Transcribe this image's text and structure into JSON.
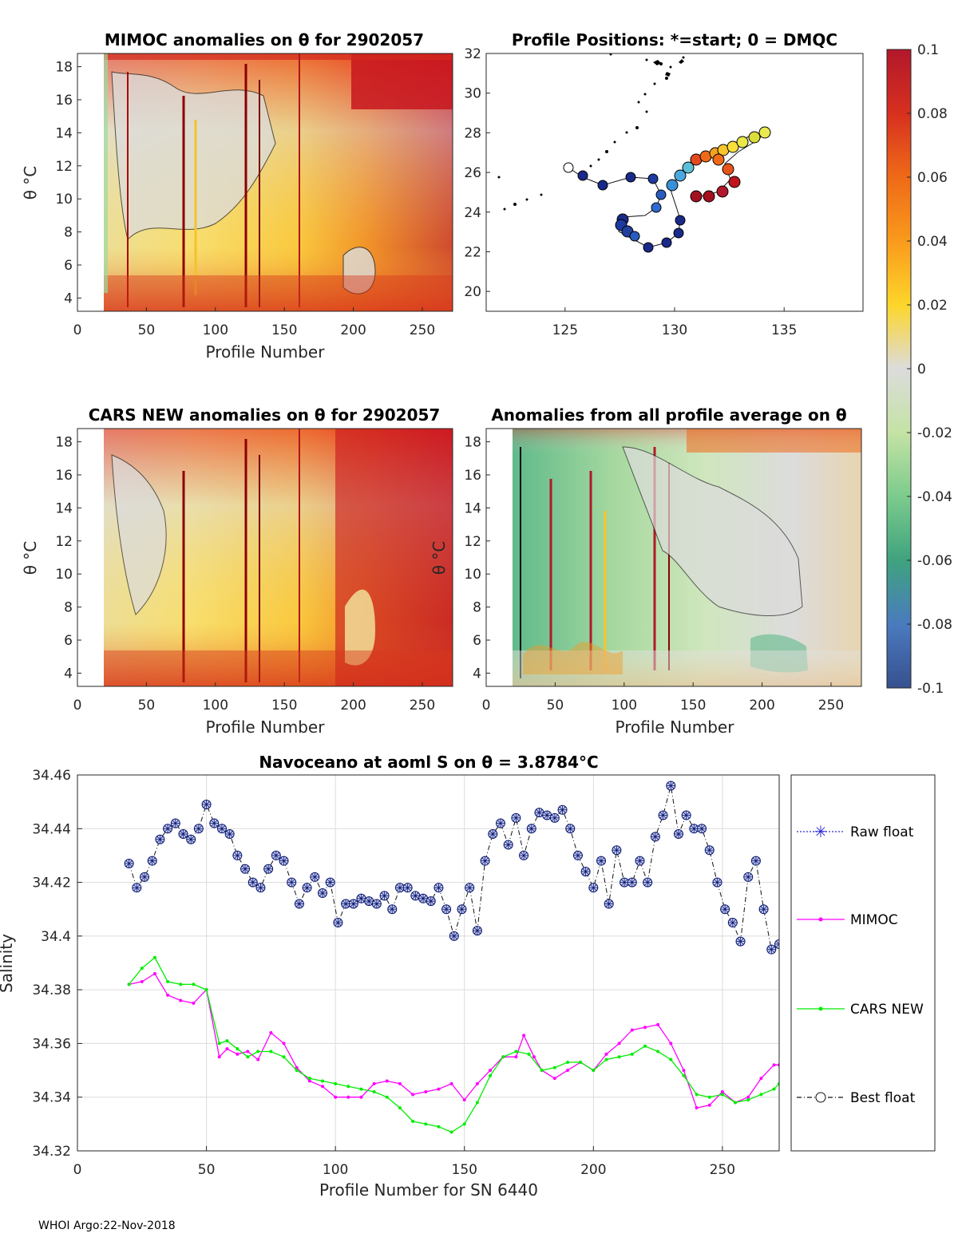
{
  "footer": "WHOI Argo:22-Nov-2018",
  "panels": {
    "mimoc": {
      "title": "MIMOC anomalies on θ  for 2902057",
      "xlabel": "Profile Number",
      "ylabel": "θ °C",
      "xticks": [
        "0",
        "50",
        "100",
        "150",
        "200",
        "250"
      ],
      "yticks": [
        "4",
        "6",
        "8",
        "10",
        "12",
        "14",
        "16",
        "18"
      ]
    },
    "positions": {
      "title": "Profile Positions: *=start; 0 = DMQC",
      "xticks": [
        "125",
        "130",
        "135"
      ],
      "yticks": [
        "20",
        "22",
        "24",
        "26",
        "28",
        "30",
        "32"
      ]
    },
    "cars": {
      "title": "CARS NEW anomalies on θ for 2902057",
      "xlabel": "Profile Number",
      "ylabel": "θ °C",
      "xticks": [
        "0",
        "50",
        "100",
        "150",
        "200",
        "250"
      ],
      "yticks": [
        "4",
        "6",
        "8",
        "10",
        "12",
        "14",
        "16",
        "18"
      ]
    },
    "avg": {
      "title": "Anomalies from all profile average on θ",
      "xlabel": "Profile Number",
      "ylabel": "θ °C",
      "xticks": [
        "0",
        "50",
        "100",
        "150",
        "200",
        "250"
      ],
      "yticks": [
        "4",
        "6",
        "8",
        "10",
        "12",
        "14",
        "16",
        "18"
      ]
    }
  },
  "colorbar": {
    "ticks": [
      "0.1",
      "0.08",
      "0.06",
      "0.04",
      "0.02",
      "0",
      "-0.02",
      "-0.04",
      "-0.06",
      "-0.08",
      "-0.1"
    ],
    "colors": [
      "#b2182b",
      "#d7301f",
      "#ef6a18",
      "#f99a1c",
      "#fdd62a",
      "#dcdcdc",
      "#c4e3a4",
      "#7ccb8d",
      "#3fa37e",
      "#4a7bbf",
      "#37508e"
    ]
  },
  "chart_data": {
    "type": "line",
    "title": "Navoceano at aoml S on θ = 3.8784°C",
    "xlabel": "Profile Number for SN 6440",
    "ylabel": "Salinity",
    "xlim": [
      0,
      272
    ],
    "ylim": [
      34.32,
      34.46
    ],
    "xticks": [
      "0",
      "50",
      "100",
      "150",
      "200",
      "250"
    ],
    "yticks": [
      "34.32",
      "34.34",
      "34.36",
      "34.38",
      "34.4",
      "34.42",
      "34.44",
      "34.46"
    ],
    "grid": true,
    "legend_position": "right",
    "legend": [
      "Raw float",
      "MIMOC",
      "CARS NEW",
      "Best float"
    ],
    "series": [
      {
        "name": "Best float",
        "color": "#0a1670",
        "x": [
          20,
          23,
          26,
          29,
          32,
          35,
          38,
          41,
          44,
          47,
          50,
          53,
          56,
          59,
          62,
          65,
          68,
          71,
          74,
          77,
          80,
          83,
          86,
          89,
          92,
          95,
          98,
          101,
          104,
          107,
          110,
          113,
          116,
          119,
          122,
          125,
          128,
          131,
          134,
          137,
          140,
          143,
          146,
          149,
          152,
          155,
          158,
          161,
          164,
          167,
          170,
          173,
          176,
          179,
          182,
          185,
          188,
          191,
          194,
          197,
          200,
          203,
          206,
          209,
          212,
          215,
          218,
          221,
          224,
          227,
          230,
          233,
          236,
          239,
          242,
          245,
          248,
          251,
          254,
          257,
          260,
          263,
          266,
          269,
          272
        ],
        "values": [
          34.427,
          34.418,
          34.422,
          34.428,
          34.436,
          34.44,
          34.442,
          34.438,
          34.436,
          34.44,
          34.449,
          34.442,
          34.44,
          34.438,
          34.43,
          34.425,
          34.42,
          34.418,
          34.425,
          34.43,
          34.428,
          34.42,
          34.412,
          34.418,
          34.422,
          34.416,
          34.42,
          34.405,
          34.412,
          34.412,
          34.414,
          34.413,
          34.412,
          34.415,
          34.41,
          34.418,
          34.418,
          34.415,
          34.414,
          34.413,
          34.418,
          34.41,
          34.4,
          34.41,
          34.418,
          34.402,
          34.428,
          34.438,
          34.442,
          34.434,
          34.444,
          34.43,
          34.44,
          34.446,
          34.445,
          34.444,
          34.447,
          34.44,
          34.43,
          34.424,
          34.418,
          34.428,
          34.412,
          34.432,
          34.42,
          34.42,
          34.428,
          34.42,
          34.437,
          34.445,
          34.456,
          34.438,
          34.445,
          34.44,
          34.44,
          34.432,
          34.42,
          34.41,
          34.405,
          34.398,
          34.422,
          34.428,
          34.41,
          34.395,
          34.397
        ]
      },
      {
        "name": "MIMOC",
        "color": "#ff00ff",
        "x": [
          20,
          25,
          30,
          35,
          40,
          45,
          50,
          55,
          58,
          62,
          66,
          70,
          75,
          80,
          85,
          90,
          95,
          100,
          105,
          110,
          115,
          120,
          125,
          130,
          135,
          140,
          145,
          150,
          155,
          160,
          165,
          170,
          173,
          177,
          180,
          185,
          190,
          195,
          200,
          205,
          210,
          215,
          220,
          225,
          230,
          235,
          240,
          245,
          250,
          255,
          260,
          265,
          270,
          272
        ],
        "values": [
          34.382,
          34.383,
          34.386,
          34.378,
          34.376,
          34.375,
          34.38,
          34.355,
          34.358,
          34.356,
          34.357,
          34.354,
          34.364,
          34.36,
          34.351,
          34.346,
          34.344,
          34.34,
          34.34,
          34.34,
          34.345,
          34.346,
          34.345,
          34.341,
          34.342,
          34.343,
          34.345,
          34.339,
          34.345,
          34.35,
          34.355,
          34.355,
          34.363,
          34.355,
          34.35,
          34.347,
          34.35,
          34.353,
          34.35,
          34.356,
          34.36,
          34.365,
          34.366,
          34.367,
          34.36,
          34.35,
          34.336,
          34.337,
          34.342,
          34.338,
          34.34,
          34.347,
          34.352,
          34.352
        ]
      },
      {
        "name": "CARS NEW",
        "color": "#00ee00",
        "x": [
          20,
          25,
          30,
          35,
          40,
          45,
          50,
          55,
          58,
          62,
          66,
          70,
          75,
          80,
          85,
          90,
          95,
          100,
          105,
          110,
          115,
          120,
          125,
          130,
          135,
          140,
          145,
          150,
          155,
          160,
          165,
          170,
          175,
          180,
          185,
          190,
          195,
          200,
          205,
          210,
          215,
          220,
          225,
          230,
          235,
          240,
          245,
          250,
          255,
          260,
          265,
          270,
          272
        ],
        "values": [
          34.382,
          34.388,
          34.392,
          34.383,
          34.382,
          34.382,
          34.38,
          34.36,
          34.361,
          34.358,
          34.355,
          34.357,
          34.357,
          34.355,
          34.35,
          34.347,
          34.346,
          34.345,
          34.344,
          34.343,
          34.342,
          34.34,
          34.336,
          34.331,
          34.33,
          34.329,
          34.327,
          34.33,
          34.338,
          34.348,
          34.355,
          34.357,
          34.356,
          34.35,
          34.351,
          34.353,
          34.353,
          34.35,
          34.354,
          34.355,
          34.356,
          34.359,
          34.357,
          34.354,
          34.348,
          34.341,
          34.34,
          34.341,
          34.338,
          34.339,
          34.341,
          34.343,
          34.345
        ]
      }
    ]
  }
}
